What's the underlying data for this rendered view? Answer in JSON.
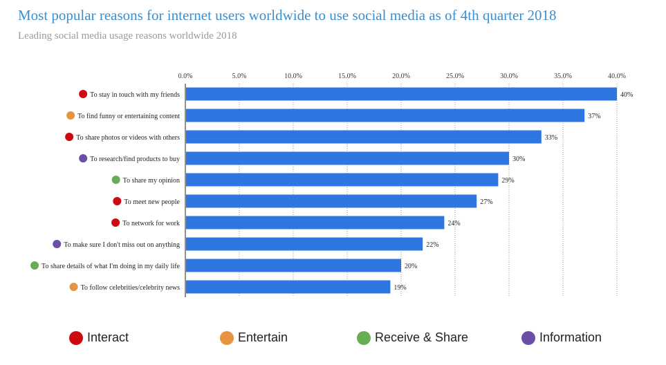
{
  "chart_data": {
    "type": "bar",
    "orientation": "horizontal",
    "title": "Most popular reasons for internet users worldwide to use social media as of 4th quarter 2018",
    "subtitle": "Leading social media usage reasons worldwide 2018",
    "xlim": [
      0,
      40
    ],
    "xticks": [
      "0.0%",
      "5.0%",
      "10.0%",
      "15.0%",
      "20.0%",
      "25.0%",
      "30.0%",
      "35.0%",
      "40.0%"
    ],
    "bar_color": "#2f77e0",
    "categories": [
      {
        "label": "To stay in touch with my friends",
        "value": 40,
        "value_label": "40%",
        "group": "interact"
      },
      {
        "label": "To find funny or entertaining content",
        "value": 37,
        "value_label": "37%",
        "group": "entertain"
      },
      {
        "label": "To share photos or videos with others",
        "value": 33,
        "value_label": "33%",
        "group": "interact"
      },
      {
        "label": "To research/find products to buy",
        "value": 30,
        "value_label": "30%",
        "group": "information"
      },
      {
        "label": "To share my opinion",
        "value": 29,
        "value_label": "29%",
        "group": "receive_share"
      },
      {
        "label": "To meet new people",
        "value": 27,
        "value_label": "27%",
        "group": "interact"
      },
      {
        "label": "To network for work",
        "value": 24,
        "value_label": "24%",
        "group": "interact"
      },
      {
        "label": "To make sure I don't miss out on anything",
        "value": 22,
        "value_label": "22%",
        "group": "information"
      },
      {
        "label": "To share details of what I'm doing in my daily life",
        "value": 20,
        "value_label": "20%",
        "group": "receive_share"
      },
      {
        "label": "To follow celebrities/celebrity news",
        "value": 19,
        "value_label": "19%",
        "group": "entertain"
      }
    ],
    "legend": [
      {
        "key": "interact",
        "label": "Interact",
        "color": "#cc0a10"
      },
      {
        "key": "entertain",
        "label": "Entertain",
        "color": "#e79440"
      },
      {
        "key": "receive_share",
        "label": "Receive & Share",
        "color": "#68ad56"
      },
      {
        "key": "information",
        "label": "Information",
        "color": "#6a4ea8"
      }
    ]
  }
}
